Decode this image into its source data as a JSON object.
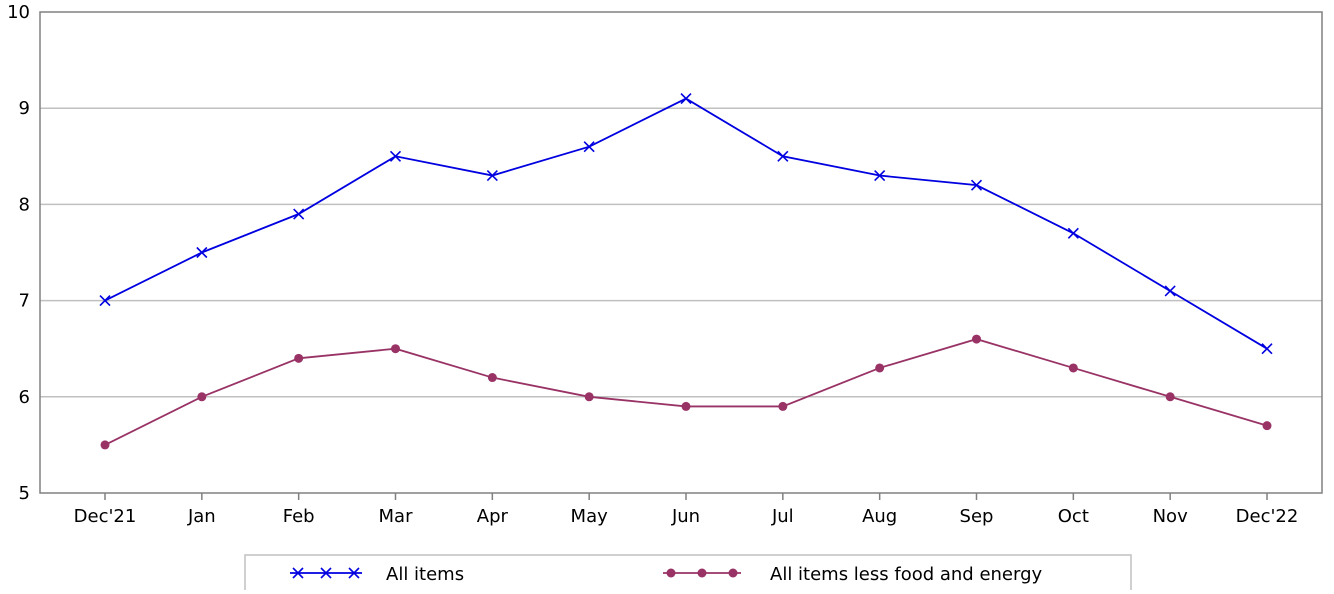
{
  "chart_data": {
    "type": "line",
    "title": "",
    "xlabel": "",
    "ylabel": "",
    "categories": [
      "Dec'21",
      "Jan",
      "Feb",
      "Mar",
      "Apr",
      "May",
      "Jun",
      "Jul",
      "Aug",
      "Sep",
      "Oct",
      "Nov",
      "Dec'22"
    ],
    "ylim": [
      5,
      10
    ],
    "yticks": [
      "5",
      "6",
      "7",
      "8",
      "9",
      "10"
    ],
    "grid": true,
    "legend_position": "bottom",
    "series": [
      {
        "name": "All items",
        "marker": "x",
        "color": "#0000e0",
        "values": [
          7.0,
          7.5,
          7.9,
          8.5,
          8.3,
          8.6,
          9.1,
          8.5,
          8.3,
          8.2,
          7.7,
          7.1,
          6.5
        ]
      },
      {
        "name": "All items less food and energy",
        "marker": "dot",
        "color": "#993366",
        "values": [
          5.5,
          6.0,
          6.4,
          6.5,
          6.2,
          6.0,
          5.9,
          5.9,
          6.3,
          6.6,
          6.3,
          6.0,
          5.7
        ]
      }
    ]
  }
}
